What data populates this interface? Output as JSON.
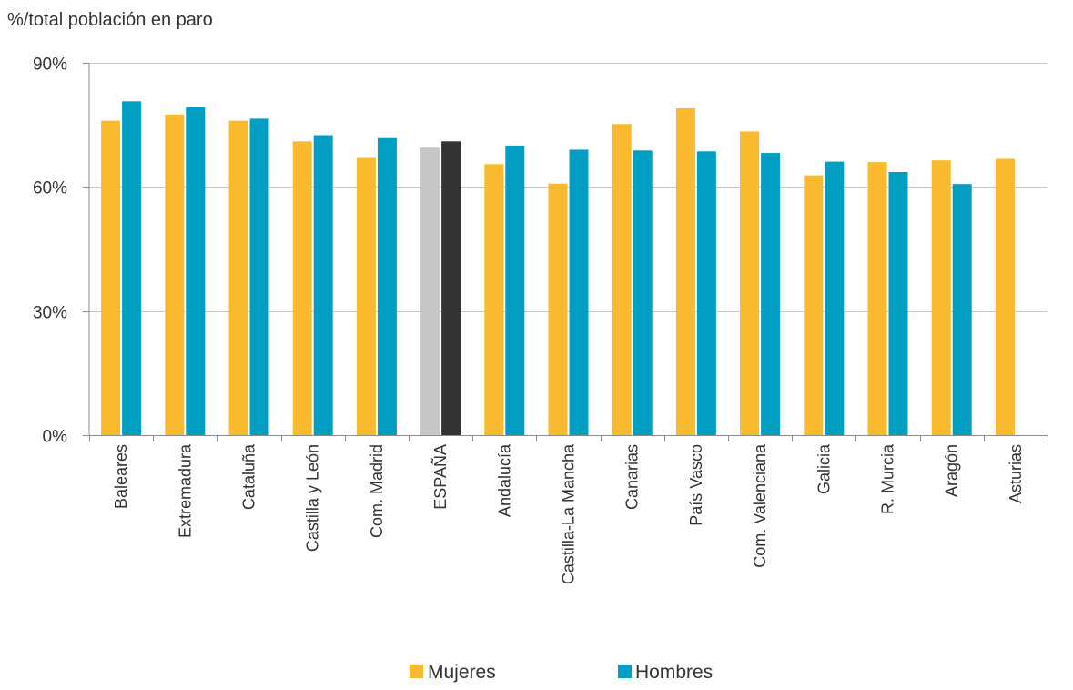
{
  "chart_data": {
    "type": "bar",
    "ylabel": "%/total población en paro",
    "ylim": [
      0,
      90
    ],
    "yticks": [
      {
        "value": 0,
        "label": "0%"
      },
      {
        "value": 30,
        "label": "30%"
      },
      {
        "value": 60,
        "label": "60%"
      },
      {
        "value": 90,
        "label": "90%"
      }
    ],
    "grid": true,
    "legend_position": "bottom",
    "categories": [
      "Baleares",
      "Extremadura",
      "Cataluña",
      "Castilla y León",
      "Com. Madrid",
      "ESPAÑA",
      "Andalucía",
      "Castilla-La Mancha",
      "Canarias",
      "País Vasco",
      "Com. Valenciana",
      "Galicia",
      "R. Murcia",
      "Aragón",
      "Asturias"
    ],
    "series": [
      {
        "name": "Mujeres",
        "color": "#F9BA2F",
        "values": [
          76,
          77.5,
          76,
          71,
          67,
          69.5,
          65.5,
          60.8,
          75.2,
          79,
          73.4,
          62.8,
          66,
          66.4,
          66.8
        ]
      },
      {
        "name": "Hombres",
        "color": "#009EC2",
        "values": [
          80.7,
          79.3,
          76.5,
          72.5,
          71.8,
          71,
          70,
          69,
          68.8,
          68.6,
          68.2,
          66.1,
          63.6,
          60.7,
          null
        ]
      }
    ],
    "highlight": {
      "category": "ESPAÑA",
      "colors": [
        "#C6C6C6",
        "#333333"
      ]
    }
  }
}
